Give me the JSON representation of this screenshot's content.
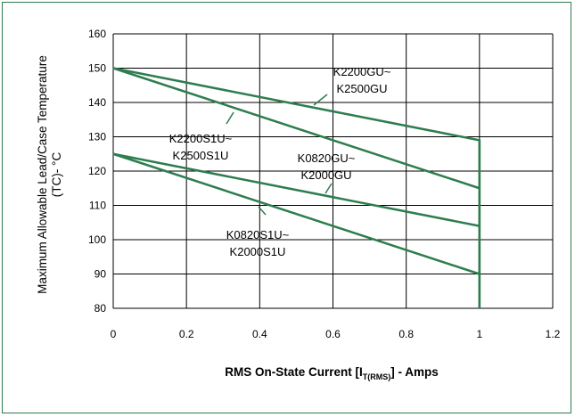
{
  "chart_data": {
    "type": "line",
    "ylabel_line1": "Maximum Allowable Lead/Case Temperature",
    "ylabel_line2": "(TC)- °C",
    "xlabel_parts": {
      "pre": "RMS On-State Current [I",
      "sub": "T(RMS)",
      "post": "] - Amps"
    },
    "xlim": [
      0,
      1.2
    ],
    "ylim": [
      80,
      160
    ],
    "x_ticks": [
      "0",
      "0.2",
      "0.4",
      "0.6",
      "0.8",
      "1",
      "1.2"
    ],
    "y_ticks": [
      "80",
      "90",
      "100",
      "110",
      "120",
      "130",
      "140",
      "150",
      "160"
    ],
    "grid": true,
    "line_color": "#2e7d4f",
    "series": [
      {
        "name": "K2200GU~ K2500GU",
        "x": [
          0,
          1,
          1
        ],
        "y": [
          150,
          129,
          80
        ]
      },
      {
        "name": "K2200S1U~ K2500S1U",
        "x": [
          0,
          1
        ],
        "y": [
          150,
          115
        ]
      },
      {
        "name": "K0820GU~ K2000GU",
        "x": [
          0,
          1
        ],
        "y": [
          125,
          104
        ]
      },
      {
        "name": "K0820S1U~ K2000S1U",
        "x": [
          0,
          1
        ],
        "y": [
          125,
          90
        ]
      }
    ],
    "annotations": [
      {
        "lines": [
          "K2200GU~",
          "K2500GU"
        ],
        "series": 0
      },
      {
        "lines": [
          "K2200S1U~",
          "K2500S1U"
        ],
        "series": 1
      },
      {
        "lines": [
          "K0820GU~",
          "K2000GU"
        ],
        "series": 2
      },
      {
        "lines": [
          "K0820S1U~",
          "K2000S1U"
        ],
        "series": 3
      }
    ]
  }
}
